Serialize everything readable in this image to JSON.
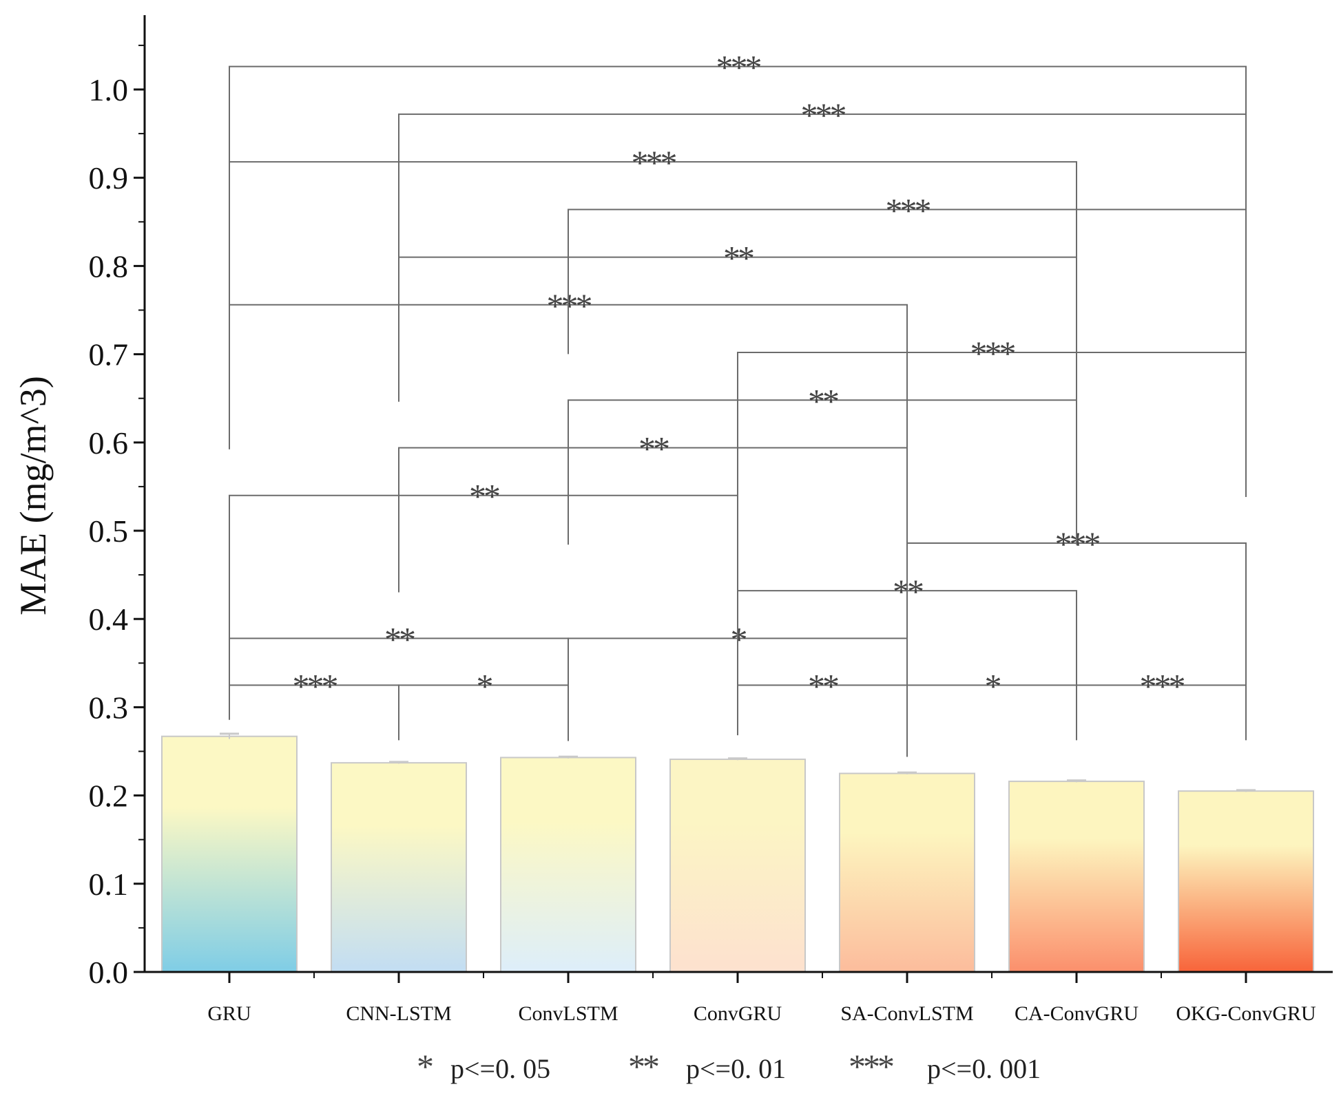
{
  "chart_data": {
    "type": "bar",
    "title": "",
    "xlabel": "",
    "ylabel": "MAE (mg/m^3)",
    "ylim": [
      0,
      1.05
    ],
    "yticks": [
      0.0,
      0.1,
      0.2,
      0.3,
      0.4,
      0.5,
      0.6,
      0.7,
      0.8,
      0.9,
      1.0
    ],
    "ytick_labels": [
      "0.0",
      "0.1",
      "0.2",
      "0.3",
      "0.4",
      "0.5",
      "0.6",
      "0.7",
      "0.8",
      "0.9",
      "1.0"
    ],
    "categories": [
      "GRU",
      "CNN-LSTM",
      "ConvLSTM",
      "ConvGRU",
      "SA-ConvLSTM",
      "CA-ConvGRU",
      "OKG-ConvGRU"
    ],
    "values": [
      0.267,
      0.237,
      0.243,
      0.241,
      0.225,
      0.216,
      0.205
    ],
    "errors": [
      0.003,
      0.001,
      0.001,
      0.001,
      0.001,
      0.001,
      0.001
    ],
    "bar_gradients": [
      [
        "#fcf8c4",
        "#7fcde6"
      ],
      [
        "#fcf8c4",
        "#c2ddf3"
      ],
      [
        "#fcf8c4",
        "#ddeefa"
      ],
      [
        "#fcf5c4",
        "#fde1cf"
      ],
      [
        "#fdf5bf",
        "#fcbc9c"
      ],
      [
        "#fdf5bf",
        "#fb8f6c"
      ],
      [
        "#fdf5bf",
        "#f8643a"
      ]
    ],
    "comparisons": [
      {
        "from": 0,
        "to": 1,
        "level": 0.325,
        "label": "***"
      },
      {
        "from": 1,
        "to": 2,
        "level": 0.325,
        "label": "*"
      },
      {
        "from": 3,
        "to": 4,
        "level": 0.325,
        "label": "**"
      },
      {
        "from": 4,
        "to": 5,
        "level": 0.325,
        "label": "*"
      },
      {
        "from": 5,
        "to": 6,
        "level": 0.325,
        "label": "***"
      },
      {
        "from": 0,
        "to": 2,
        "level": 0.378,
        "label": "**"
      },
      {
        "from": 2,
        "to": 4,
        "level": 0.378,
        "label": "*"
      },
      {
        "from": 3,
        "to": 5,
        "level": 0.432,
        "label": "**"
      },
      {
        "from": 4,
        "to": 6,
        "level": 0.486,
        "label": "***"
      },
      {
        "from": 0,
        "to": 3,
        "level": 0.54,
        "label": "**"
      },
      {
        "from": 1,
        "to": 4,
        "level": 0.594,
        "label": "**"
      },
      {
        "from": 2,
        "to": 5,
        "level": 0.648,
        "label": "**"
      },
      {
        "from": 3,
        "to": 6,
        "level": 0.702,
        "label": "***"
      },
      {
        "from": 0,
        "to": 4,
        "level": 0.756,
        "label": "***"
      },
      {
        "from": 1,
        "to": 5,
        "level": 0.81,
        "label": "**"
      },
      {
        "from": 2,
        "to": 6,
        "level": 0.864,
        "label": "***"
      },
      {
        "from": 0,
        "to": 5,
        "level": 0.918,
        "label": "***"
      },
      {
        "from": 1,
        "to": 6,
        "level": 0.972,
        "label": "***"
      },
      {
        "from": 0,
        "to": 6,
        "level": 1.026,
        "label": "***"
      }
    ],
    "legend": [
      {
        "stars": "*",
        "text": "p<=0. 05"
      },
      {
        "stars": "**",
        "text": "p<=0. 01"
      },
      {
        "stars": "***",
        "text": "p<=0. 001"
      }
    ],
    "legend_position": "bottom-center"
  },
  "colors": {
    "axis": "#111111",
    "bracket": "#6b6b6b",
    "bar_border": "#c8c8c8",
    "error_bar": "#c9c9c9",
    "star_text": "#444444"
  }
}
